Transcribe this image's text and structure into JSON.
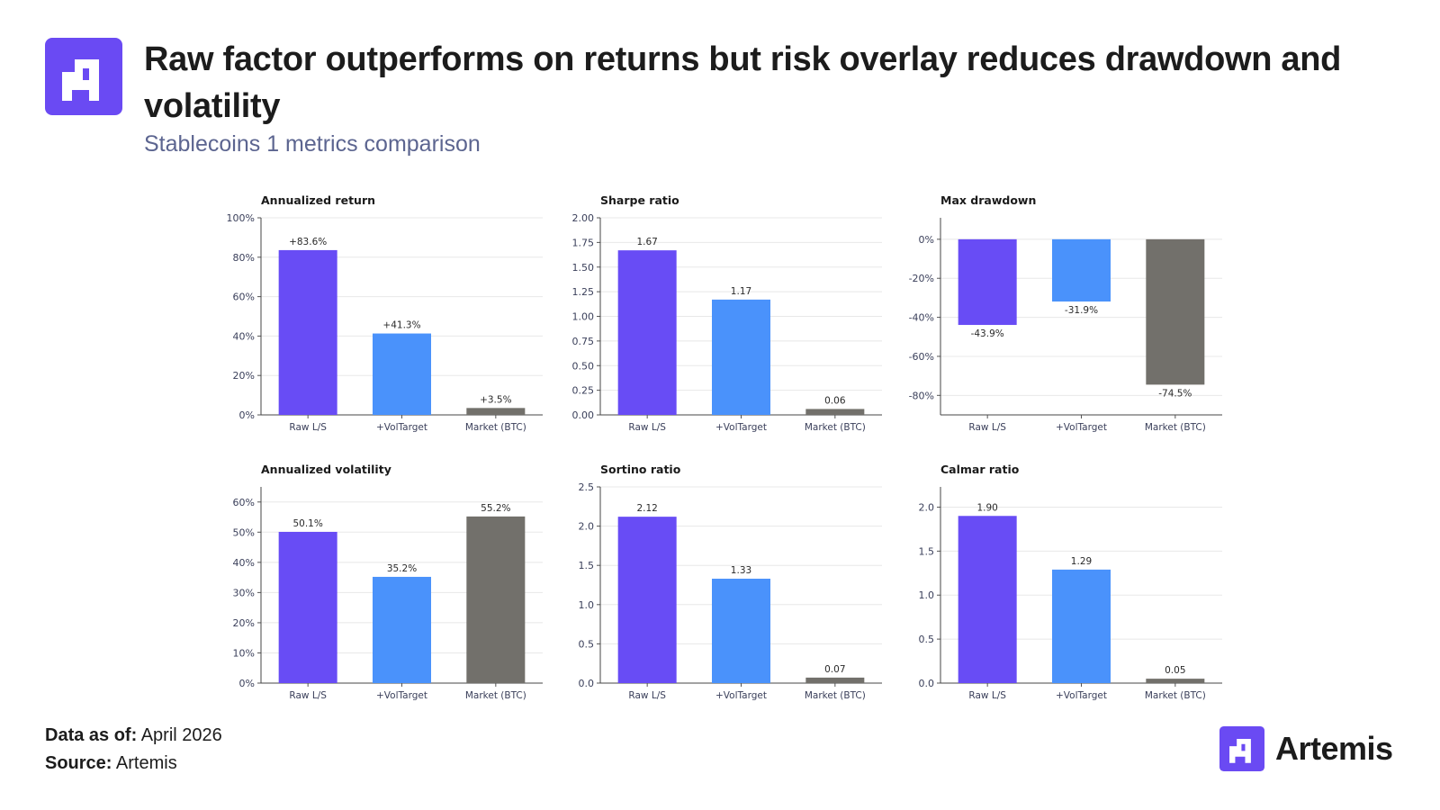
{
  "header": {
    "title": "Raw factor outperforms on returns but risk overlay reduces drawdown and volatility",
    "subtitle": "Stablecoins 1 metrics comparison"
  },
  "footer": {
    "data_as_of_label": "Data as of:",
    "data_as_of_value": " April 2026",
    "source_label": "Source:",
    "source_value": " Artemis"
  },
  "brand": {
    "name": "Artemis",
    "logo_icon": "artemis-logo-icon"
  },
  "colors": {
    "raw": "#684cf5",
    "voltarget": "#4a92fb",
    "market": "#72706b",
    "brand": "#6a4af3"
  },
  "chart_data": [
    {
      "type": "bar",
      "title": "Annualized return",
      "categories": [
        "Raw L/S",
        "+VolTarget",
        "Market (BTC)"
      ],
      "values": [
        83.6,
        41.3,
        3.5
      ],
      "labels": [
        "+83.6%",
        "+41.3%",
        "+3.5%"
      ],
      "ylim": [
        0,
        100
      ],
      "ticks": [
        0,
        20,
        40,
        60,
        80,
        100
      ],
      "tick_labels": [
        "0%",
        "20%",
        "40%",
        "60%",
        "80%",
        "100%"
      ]
    },
    {
      "type": "bar",
      "title": "Sharpe ratio",
      "categories": [
        "Raw L/S",
        "+VolTarget",
        "Market (BTC)"
      ],
      "values": [
        1.67,
        1.17,
        0.06
      ],
      "labels": [
        "1.67",
        "1.17",
        "0.06"
      ],
      "ylim": [
        0,
        2.0
      ],
      "ticks": [
        0,
        0.25,
        0.5,
        0.75,
        1.0,
        1.25,
        1.5,
        1.75,
        2.0
      ],
      "tick_labels": [
        "0.00",
        "0.25",
        "0.50",
        "0.75",
        "1.00",
        "1.25",
        "1.50",
        "1.75",
        "2.00"
      ]
    },
    {
      "type": "bar",
      "title": "Max drawdown",
      "categories": [
        "Raw L/S",
        "+VolTarget",
        "Market (BTC)"
      ],
      "values": [
        -43.9,
        -31.9,
        -74.5
      ],
      "labels": [
        "-43.9%",
        "-31.9%",
        "-74.5%"
      ],
      "ylim": [
        -90,
        11
      ],
      "ticks": [
        -80,
        -60,
        -40,
        -20,
        0
      ],
      "tick_labels": [
        "-80%",
        "-60%",
        "-40%",
        "-20%",
        "0%"
      ]
    },
    {
      "type": "bar",
      "title": "Annualized volatility",
      "categories": [
        "Raw L/S",
        "+VolTarget",
        "Market (BTC)"
      ],
      "values": [
        50.1,
        35.2,
        55.2
      ],
      "labels": [
        "50.1%",
        "35.2%",
        "55.2%"
      ],
      "ylim": [
        0,
        65
      ],
      "ticks": [
        0,
        10,
        20,
        30,
        40,
        50,
        60
      ],
      "tick_labels": [
        "0%",
        "10%",
        "20%",
        "30%",
        "40%",
        "50%",
        "60%"
      ]
    },
    {
      "type": "bar",
      "title": "Sortino ratio",
      "categories": [
        "Raw L/S",
        "+VolTarget",
        "Market (BTC)"
      ],
      "values": [
        2.12,
        1.33,
        0.07
      ],
      "labels": [
        "2.12",
        "1.33",
        "0.07"
      ],
      "ylim": [
        0,
        2.5
      ],
      "ticks": [
        0,
        0.5,
        1.0,
        1.5,
        2.0,
        2.5
      ],
      "tick_labels": [
        "0.0",
        "0.5",
        "1.0",
        "1.5",
        "2.0",
        "2.5"
      ]
    },
    {
      "type": "bar",
      "title": "Calmar ratio",
      "categories": [
        "Raw L/S",
        "+VolTarget",
        "Market (BTC)"
      ],
      "values": [
        1.9,
        1.29,
        0.05
      ],
      "labels": [
        "1.90",
        "1.29",
        "0.05"
      ],
      "ylim": [
        0,
        2.23
      ],
      "ticks": [
        0,
        0.5,
        1.0,
        1.5,
        2.0
      ],
      "tick_labels": [
        "0.0",
        "0.5",
        "1.0",
        "1.5",
        "2.0"
      ]
    }
  ]
}
